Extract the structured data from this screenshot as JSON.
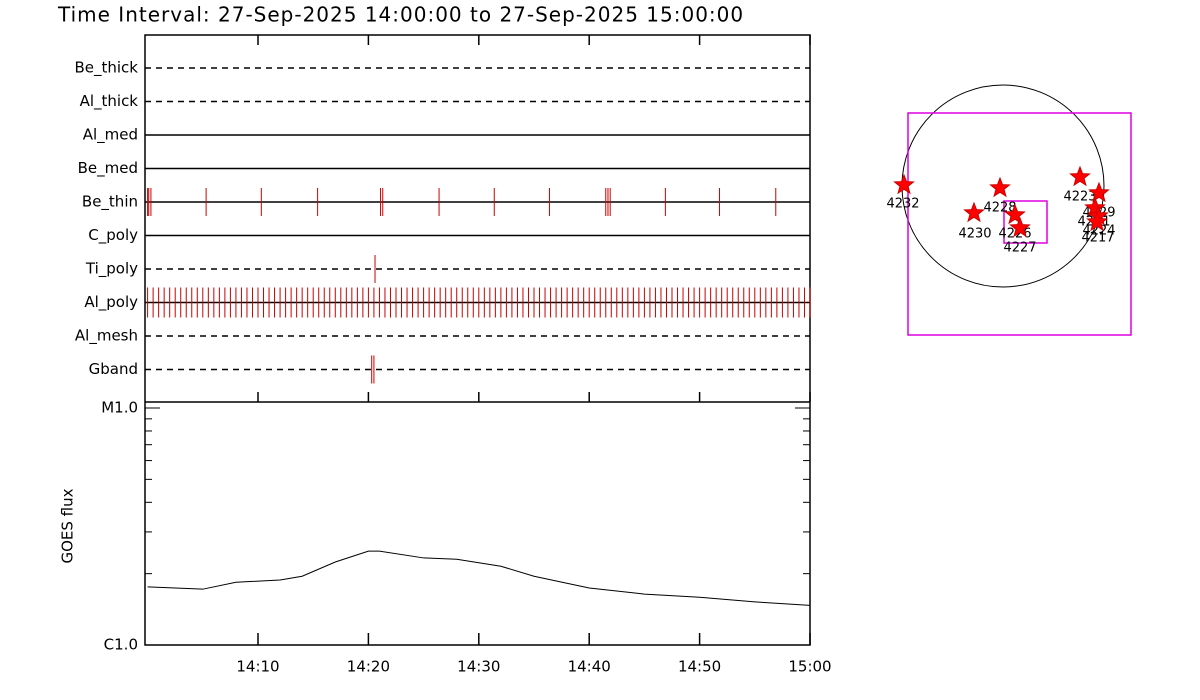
{
  "title": "Time Interval: 27-Sep-2025 14:00:00 to 27-Sep-2025 15:00:00",
  "chart_data": [
    {
      "type": "timeline",
      "color": "#cc0000",
      "filters": [
        {
          "name": "Be_thick",
          "style": "dashed",
          "events": []
        },
        {
          "name": "Al_thick",
          "style": "dashed",
          "events": []
        },
        {
          "name": "Al_med",
          "style": "solid",
          "events": []
        },
        {
          "name": "Be_med",
          "style": "solid",
          "events": []
        },
        {
          "name": "Be_thin",
          "style": "solid",
          "events": [
            0,
            0.1,
            0.3,
            5.3,
            10.3,
            15.4,
            21.1,
            21.3,
            26.4,
            31.4,
            36.4,
            41.5,
            41.7,
            41.9,
            46.9,
            51.8,
            56.9
          ]
        },
        {
          "name": "C_poly",
          "style": "solid",
          "events": []
        },
        {
          "name": "Ti_poly",
          "style": "dashed",
          "events": [
            20.6
          ]
        },
        {
          "name": "Al_poly",
          "style": "solid",
          "events": [
            0,
            0.5,
            1,
            1.5,
            2,
            2.5,
            3,
            3.5,
            4,
            4.5,
            5,
            5.5,
            6,
            6.5,
            7,
            7.5,
            8,
            8.5,
            9,
            9.5,
            10,
            10.5,
            11,
            11.5,
            12,
            12.5,
            13,
            13.5,
            14,
            14.5,
            15,
            15.5,
            16,
            16.5,
            17,
            17.5,
            18,
            18.5,
            19,
            19.5,
            20,
            20.5,
            21,
            21.5,
            22,
            22.5,
            23,
            23.5,
            24,
            24.5,
            25,
            25.5,
            26,
            26.5,
            27,
            27.5,
            28,
            28.5,
            29,
            29.5,
            30,
            30.5,
            31,
            31.5,
            32,
            32.5,
            33,
            33.5,
            34,
            34.5,
            35,
            35.5,
            36,
            36.5,
            37,
            37.5,
            38,
            38.5,
            39,
            39.5,
            40,
            40.5,
            41,
            41.5,
            42,
            42.5,
            43,
            43.5,
            44,
            44.5,
            45,
            45.5,
            46,
            46.5,
            47,
            47.5,
            48,
            48.5,
            49,
            49.5,
            50,
            50.5,
            51,
            51.5,
            52,
            52.5,
            53,
            53.5,
            54,
            54.5,
            55,
            55.5,
            56,
            56.5,
            57,
            57.5,
            58,
            58.5,
            59,
            59.5,
            60
          ]
        },
        {
          "name": "Al_mesh",
          "style": "dashed",
          "events": []
        },
        {
          "name": "Gband",
          "style": "dashed",
          "events": [
            20.3,
            20.5
          ]
        }
      ],
      "xlim": [
        0,
        60
      ],
      "xticks": [
        {
          "value": 10,
          "label": "14:10"
        },
        {
          "value": 20,
          "label": "14:20"
        },
        {
          "value": 30,
          "label": "14:30"
        },
        {
          "value": 40,
          "label": "14:40"
        },
        {
          "value": 50,
          "label": "14:50"
        },
        {
          "value": 60,
          "label": "15:00"
        }
      ]
    },
    {
      "type": "line",
      "ylabel": "GOES flux",
      "color": "#000000",
      "log": true,
      "x": [
        0,
        5,
        8,
        12,
        14,
        17,
        20,
        21,
        25,
        28,
        32,
        35,
        40,
        45,
        50,
        55,
        60
      ],
      "values": [
        1.76e-06,
        1.72e-06,
        1.84e-06,
        1.88e-06,
        1.95e-06,
        2.24e-06,
        2.49e-06,
        2.49e-06,
        2.33e-06,
        2.3e-06,
        2.15e-06,
        1.95e-06,
        1.74e-06,
        1.64e-06,
        1.59e-06,
        1.52e-06,
        1.47e-06
      ],
      "xlim": [
        0,
        60
      ],
      "xticks": [
        {
          "value": 10,
          "label": "14:10"
        },
        {
          "value": 20,
          "label": "14:20"
        },
        {
          "value": 30,
          "label": "14:30"
        },
        {
          "value": 40,
          "label": "14:40"
        },
        {
          "value": 50,
          "label": "14:50"
        },
        {
          "value": 60,
          "label": "15:00"
        }
      ],
      "ylim": [
        1e-06,
        1e-05
      ],
      "yticks": [
        {
          "value": 1e-06,
          "label": "C1.0"
        },
        {
          "value": 1e-05,
          "label": "M1.0"
        }
      ],
      "yminorticks": [
        2e-06,
        3e-06,
        4e-06,
        5e-06,
        6e-06,
        7e-06,
        8e-06,
        9e-06
      ]
    }
  ],
  "map": {
    "regions": [
      "4232",
      "4228",
      "4230",
      "4226",
      "4227",
      "4223",
      "4229",
      "4231",
      "4224",
      "4217"
    ]
  }
}
